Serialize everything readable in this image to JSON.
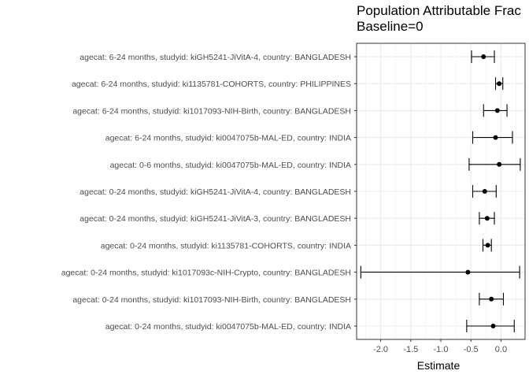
{
  "chart_data": {
    "type": "forest",
    "title": "Population Attributable Frac",
    "subtitle": "Baseline=0",
    "xlabel": "Estimate",
    "ylabel": "",
    "xlim": [
      -2.4,
      0.4
    ],
    "xticks": [
      -2.0,
      -1.5,
      -1.0,
      -0.5,
      0.0
    ],
    "xtick_labels": [
      "-2.0",
      "-1.5",
      "-1.0",
      "-0.5",
      "0.0"
    ],
    "grid": true,
    "categories": [
      "agecat: 6-24 months, studyid: kiGH5241-JiVitA-4, country: BANGLADESH",
      "agecat: 6-24 months, studyid: ki1135781-COHORTS, country: PHILIPPINES",
      "agecat: 6-24 months, studyid: ki1017093-NIH-Birth, country: BANGLADESH",
      "agecat: 6-24 months, studyid: ki0047075b-MAL-ED, country: INDIA",
      "agecat: 0-6 months, studyid: ki0047075b-MAL-ED, country: INDIA",
      "agecat: 0-24 months, studyid: kiGH5241-JiVitA-4, country: BANGLADESH",
      "agecat: 0-24 months, studyid: kiGH5241-JiVitA-3, country: BANGLADESH",
      "agecat: 0-24 months, studyid: ki1135781-COHORTS, country: INDIA",
      "agecat: 0-24 months, studyid: ki1017093c-NIH-Crypto, country: BANGLADESH",
      "agecat: 0-24 months, studyid: ki1017093-NIH-Birth, country: BANGLADESH",
      "agecat: 0-24 months, studyid: ki0047075b-MAL-ED, country: INDIA"
    ],
    "estimates": [
      -0.29,
      -0.03,
      -0.06,
      -0.09,
      -0.03,
      -0.27,
      -0.23,
      -0.22,
      -0.55,
      -0.16,
      -0.13
    ],
    "lower": [
      -0.49,
      -0.09,
      -0.29,
      -0.47,
      -0.53,
      -0.47,
      -0.36,
      -0.3,
      -2.33,
      -0.36,
      -0.57
    ],
    "upper": [
      -0.11,
      0.03,
      0.1,
      0.19,
      0.32,
      -0.08,
      -0.11,
      -0.16,
      0.31,
      0.04,
      0.22
    ]
  }
}
